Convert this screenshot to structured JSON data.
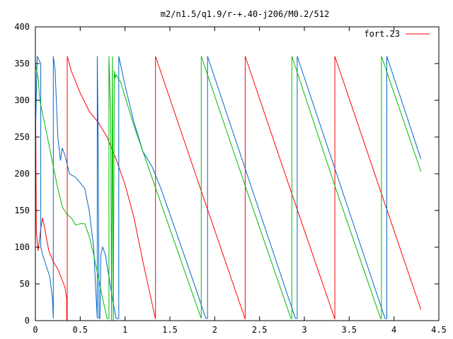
{
  "chart_data": {
    "type": "line",
    "title": "m2/n1.5/q1.9/r-+.40-j206/M0.2/512",
    "xlim": [
      0,
      4.5
    ],
    "ylim": [
      0,
      400
    ],
    "xticks": [
      0,
      0.5,
      1,
      1.5,
      2,
      2.5,
      3,
      3.5,
      4,
      4.5
    ],
    "yticks": [
      0,
      50,
      100,
      150,
      200,
      250,
      300,
      350,
      400
    ],
    "xtick_labels": [
      "0",
      "0.5",
      "1",
      "1.5",
      "2",
      "2.5",
      "3",
      "3.5",
      "4",
      "4.5"
    ],
    "ytick_labels": [
      "0",
      "50",
      "100",
      "150",
      "200",
      "250",
      "300",
      "350",
      "400"
    ],
    "grid": false,
    "legend": {
      "position": "top-right",
      "label": "fort.23",
      "color": "#ff0000"
    },
    "series": [
      {
        "color": "#ff0000",
        "points": [
          [
            0.0,
            0
          ],
          [
            0.0,
            358
          ],
          [
            0.01,
            120
          ],
          [
            0.02,
            110
          ],
          [
            0.03,
            95
          ],
          [
            0.06,
            125
          ],
          [
            0.08,
            140
          ],
          [
            0.1,
            128
          ],
          [
            0.15,
            95
          ],
          [
            0.2,
            80
          ],
          [
            0.25,
            70
          ],
          [
            0.3,
            55
          ],
          [
            0.33,
            45
          ],
          [
            0.35,
            30
          ],
          [
            0.35,
            0
          ],
          [
            0.355,
            0
          ],
          [
            0.355,
            360
          ],
          [
            0.4,
            340
          ],
          [
            0.5,
            310
          ],
          [
            0.6,
            285
          ],
          [
            0.7,
            270
          ],
          [
            0.8,
            250
          ],
          [
            0.9,
            220
          ],
          [
            1.0,
            185
          ],
          [
            1.1,
            140
          ],
          [
            1.2,
            80
          ],
          [
            1.34,
            2
          ],
          [
            1.34,
            360
          ],
          [
            1.84,
            180
          ],
          [
            2.34,
            2
          ],
          [
            2.34,
            360
          ],
          [
            2.84,
            180
          ],
          [
            3.34,
            2
          ],
          [
            3.34,
            360
          ],
          [
            3.84,
            180
          ],
          [
            4.3,
            15
          ]
        ]
      },
      {
        "color": "#0066cc",
        "points": [
          [
            0.0,
            250
          ],
          [
            0.02,
            360
          ],
          [
            0.04,
            355
          ],
          [
            0.06,
            350
          ],
          [
            0.06,
            100
          ],
          [
            0.08,
            90
          ],
          [
            0.12,
            75
          ],
          [
            0.16,
            60
          ],
          [
            0.19,
            30
          ],
          [
            0.2,
            3
          ],
          [
            0.2,
            360
          ],
          [
            0.22,
            340
          ],
          [
            0.25,
            250
          ],
          [
            0.28,
            218
          ],
          [
            0.3,
            235
          ],
          [
            0.33,
            225
          ],
          [
            0.38,
            200
          ],
          [
            0.45,
            195
          ],
          [
            0.55,
            180
          ],
          [
            0.6,
            150
          ],
          [
            0.65,
            100
          ],
          [
            0.67,
            50
          ],
          [
            0.69,
            3
          ],
          [
            0.69,
            360
          ],
          [
            0.7,
            250
          ],
          [
            0.71,
            3
          ],
          [
            0.72,
            3
          ],
          [
            0.73,
            90
          ],
          [
            0.75,
            100
          ],
          [
            0.78,
            90
          ],
          [
            0.82,
            60
          ],
          [
            0.86,
            30
          ],
          [
            0.9,
            3
          ],
          [
            0.93,
            3
          ],
          [
            0.93,
            360
          ],
          [
            1.0,
            320
          ],
          [
            1.1,
            270
          ],
          [
            1.2,
            230
          ],
          [
            1.3,
            210
          ],
          [
            1.4,
            180
          ],
          [
            1.6,
            110
          ],
          [
            1.8,
            40
          ],
          [
            1.9,
            3
          ],
          [
            1.92,
            3
          ],
          [
            1.92,
            360
          ],
          [
            2.4,
            185
          ],
          [
            2.9,
            3
          ],
          [
            2.92,
            3
          ],
          [
            2.92,
            360
          ],
          [
            3.4,
            185
          ],
          [
            3.9,
            3
          ],
          [
            3.92,
            3
          ],
          [
            3.92,
            360
          ],
          [
            4.3,
            220
          ]
        ]
      },
      {
        "color": "#00bb00",
        "points": [
          [
            0.0,
            350
          ],
          [
            0.03,
            330
          ],
          [
            0.05,
            300
          ],
          [
            0.1,
            270
          ],
          [
            0.15,
            240
          ],
          [
            0.2,
            210
          ],
          [
            0.25,
            180
          ],
          [
            0.3,
            155
          ],
          [
            0.35,
            145
          ],
          [
            0.4,
            140
          ],
          [
            0.45,
            130
          ],
          [
            0.5,
            132
          ],
          [
            0.55,
            132
          ],
          [
            0.6,
            115
          ],
          [
            0.65,
            90
          ],
          [
            0.7,
            60
          ],
          [
            0.75,
            30
          ],
          [
            0.8,
            3
          ],
          [
            0.82,
            3
          ],
          [
            0.82,
            360
          ],
          [
            0.84,
            280
          ],
          [
            0.85,
            0
          ],
          [
            0.86,
            360
          ],
          [
            0.87,
            0
          ],
          [
            0.88,
            340
          ],
          [
            0.89,
            330
          ],
          [
            0.9,
            335
          ],
          [
            0.95,
            325
          ],
          [
            1.0,
            305
          ],
          [
            1.05,
            285
          ],
          [
            1.1,
            265
          ],
          [
            1.2,
            230
          ],
          [
            1.4,
            160
          ],
          [
            1.6,
            90
          ],
          [
            1.8,
            20
          ],
          [
            1.85,
            3
          ],
          [
            1.85,
            360
          ],
          [
            2.35,
            180
          ],
          [
            2.85,
            3
          ],
          [
            2.86,
            3
          ],
          [
            2.86,
            360
          ],
          [
            3.35,
            180
          ],
          [
            3.85,
            3
          ],
          [
            3.86,
            3
          ],
          [
            3.86,
            360
          ],
          [
            4.3,
            203
          ]
        ]
      }
    ]
  }
}
